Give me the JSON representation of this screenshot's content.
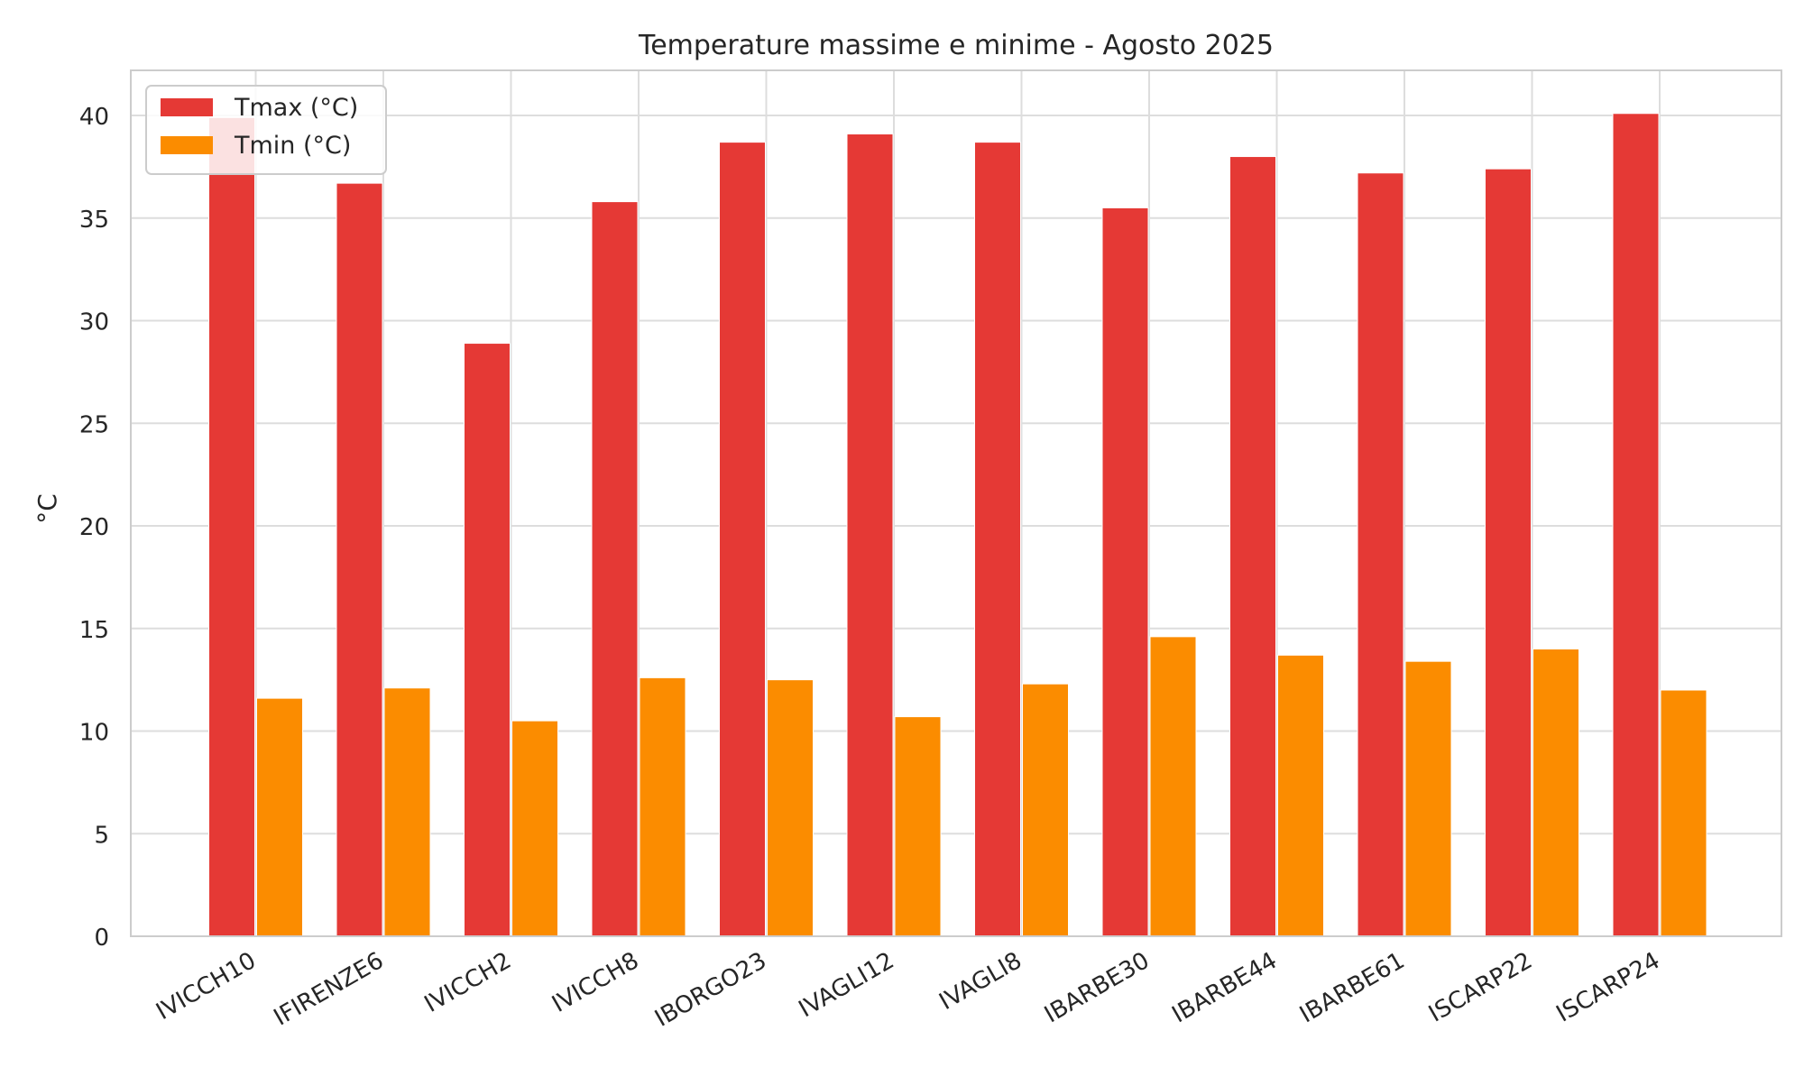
{
  "chart_data": {
    "type": "bar",
    "title": "Temperature massime e minime - Agosto 2025",
    "xlabel": "",
    "ylabel": "°C",
    "ylim": [
      0,
      42.2
    ],
    "yticks": [
      0,
      5,
      10,
      15,
      20,
      25,
      30,
      35,
      40
    ],
    "grid": true,
    "legend_position": "top-left",
    "categories": [
      "IVICCH10",
      "IFIRENZE6",
      "IVICCH2",
      "IVICCH8",
      "IBORGO23",
      "IVAGLI12",
      "IVAGLI8",
      "IBARBE30",
      "IBARBE44",
      "IBARBE61",
      "ISCARP22",
      "ISCARP24"
    ],
    "series": [
      {
        "name": "Tmax (°C)",
        "color": "#e53935",
        "values": [
          39.9,
          36.7,
          28.9,
          35.8,
          38.7,
          39.1,
          38.7,
          35.5,
          38.0,
          37.2,
          37.4,
          40.1
        ]
      },
      {
        "name": "Tmin (°C)",
        "color": "#fb8c00",
        "values": [
          11.6,
          12.1,
          10.5,
          12.6,
          12.5,
          10.7,
          12.3,
          14.6,
          13.7,
          13.4,
          14.0,
          12.0
        ]
      }
    ]
  }
}
